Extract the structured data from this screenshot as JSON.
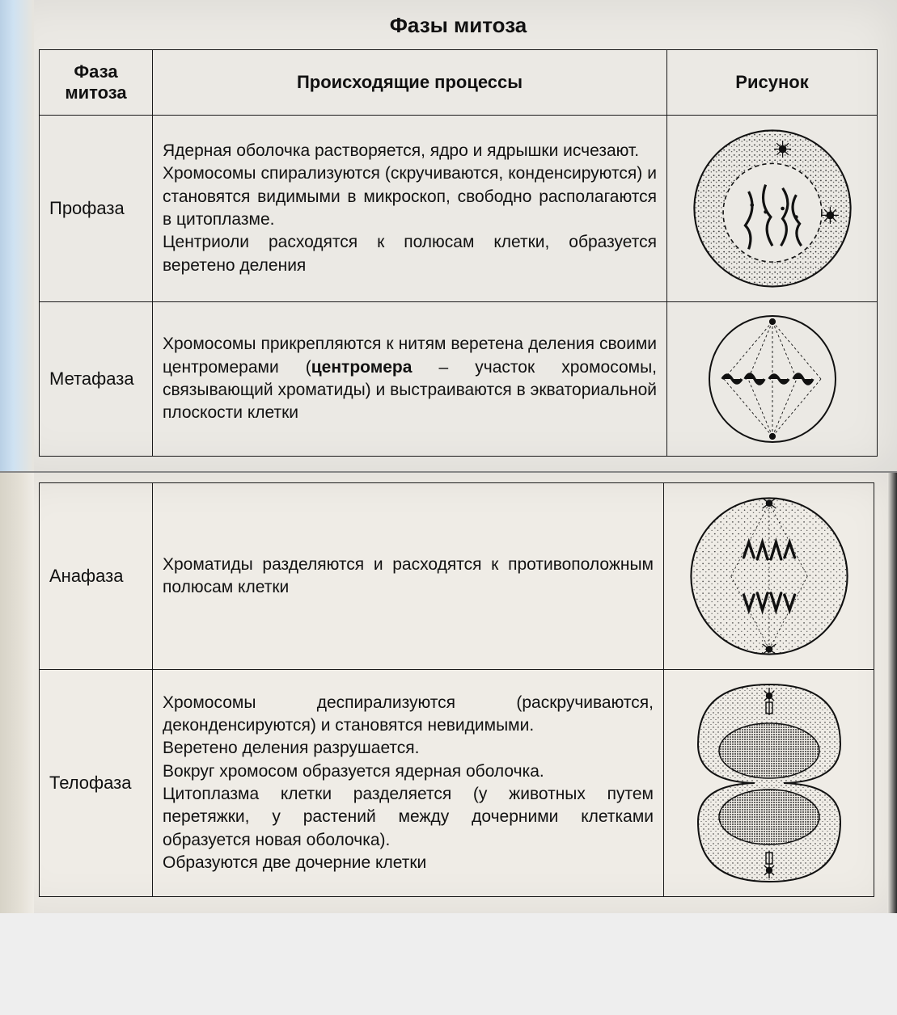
{
  "title": "Фазы митоза",
  "columns": {
    "phase": "Фаза митоза",
    "process": "Происходящие процессы",
    "figure": "Рисунок"
  },
  "rows": [
    {
      "phase": "Профаза",
      "process_html": "Ядерная оболочка растворяется, ядро и ядрышки исчезают.<br>Хромосомы спирализуются (скручиваются, конденсируются) и становятся видимыми в микроскоп, свободно располагаются в цито­плазме.<br>Центриоли расходятся к полюсам клетки, об­разуется веретено деления",
      "figure": "prophase"
    },
    {
      "phase": "Метафаза",
      "process_html": "Хромосомы прикрепляются к нитям веретена деления своими центромерами (<strong>центромера</strong> – участок хромосомы, связывающий хромати­ды) и выстраиваются в экваториальной пло­скости клетки",
      "figure": "metaphase"
    },
    {
      "phase": "Анафаза",
      "process_html": "Хроматиды разделяются и расходятся к проти­воположным полюсам клетки",
      "figure": "anaphase"
    },
    {
      "phase": "Телофаза",
      "process_html": "Хромосомы деспирализуются (раскручивают­ся, деконденсируются) и становятся невиди­мыми.<br>Веретено деления разрушается.<br>Вокруг хромосом образуется ядерная обо­лочка.<br>Цитоплазма клетки разделяется (у животных путем перетяжки, у растений между дочерни­ми клетками образуется новая оболочка).<br>Образуются две дочерние клетки",
      "figure": "telophase"
    }
  ],
  "style": {
    "stroke": "#111111",
    "fill_dots": "#222222",
    "bg_top": "#ebe9e4",
    "bg_bottom": "#efece6",
    "border": "#1a1a1a",
    "title_fontsize": 26,
    "header_fontsize": 22,
    "body_fontsize": 21,
    "font_family": "Arial"
  }
}
